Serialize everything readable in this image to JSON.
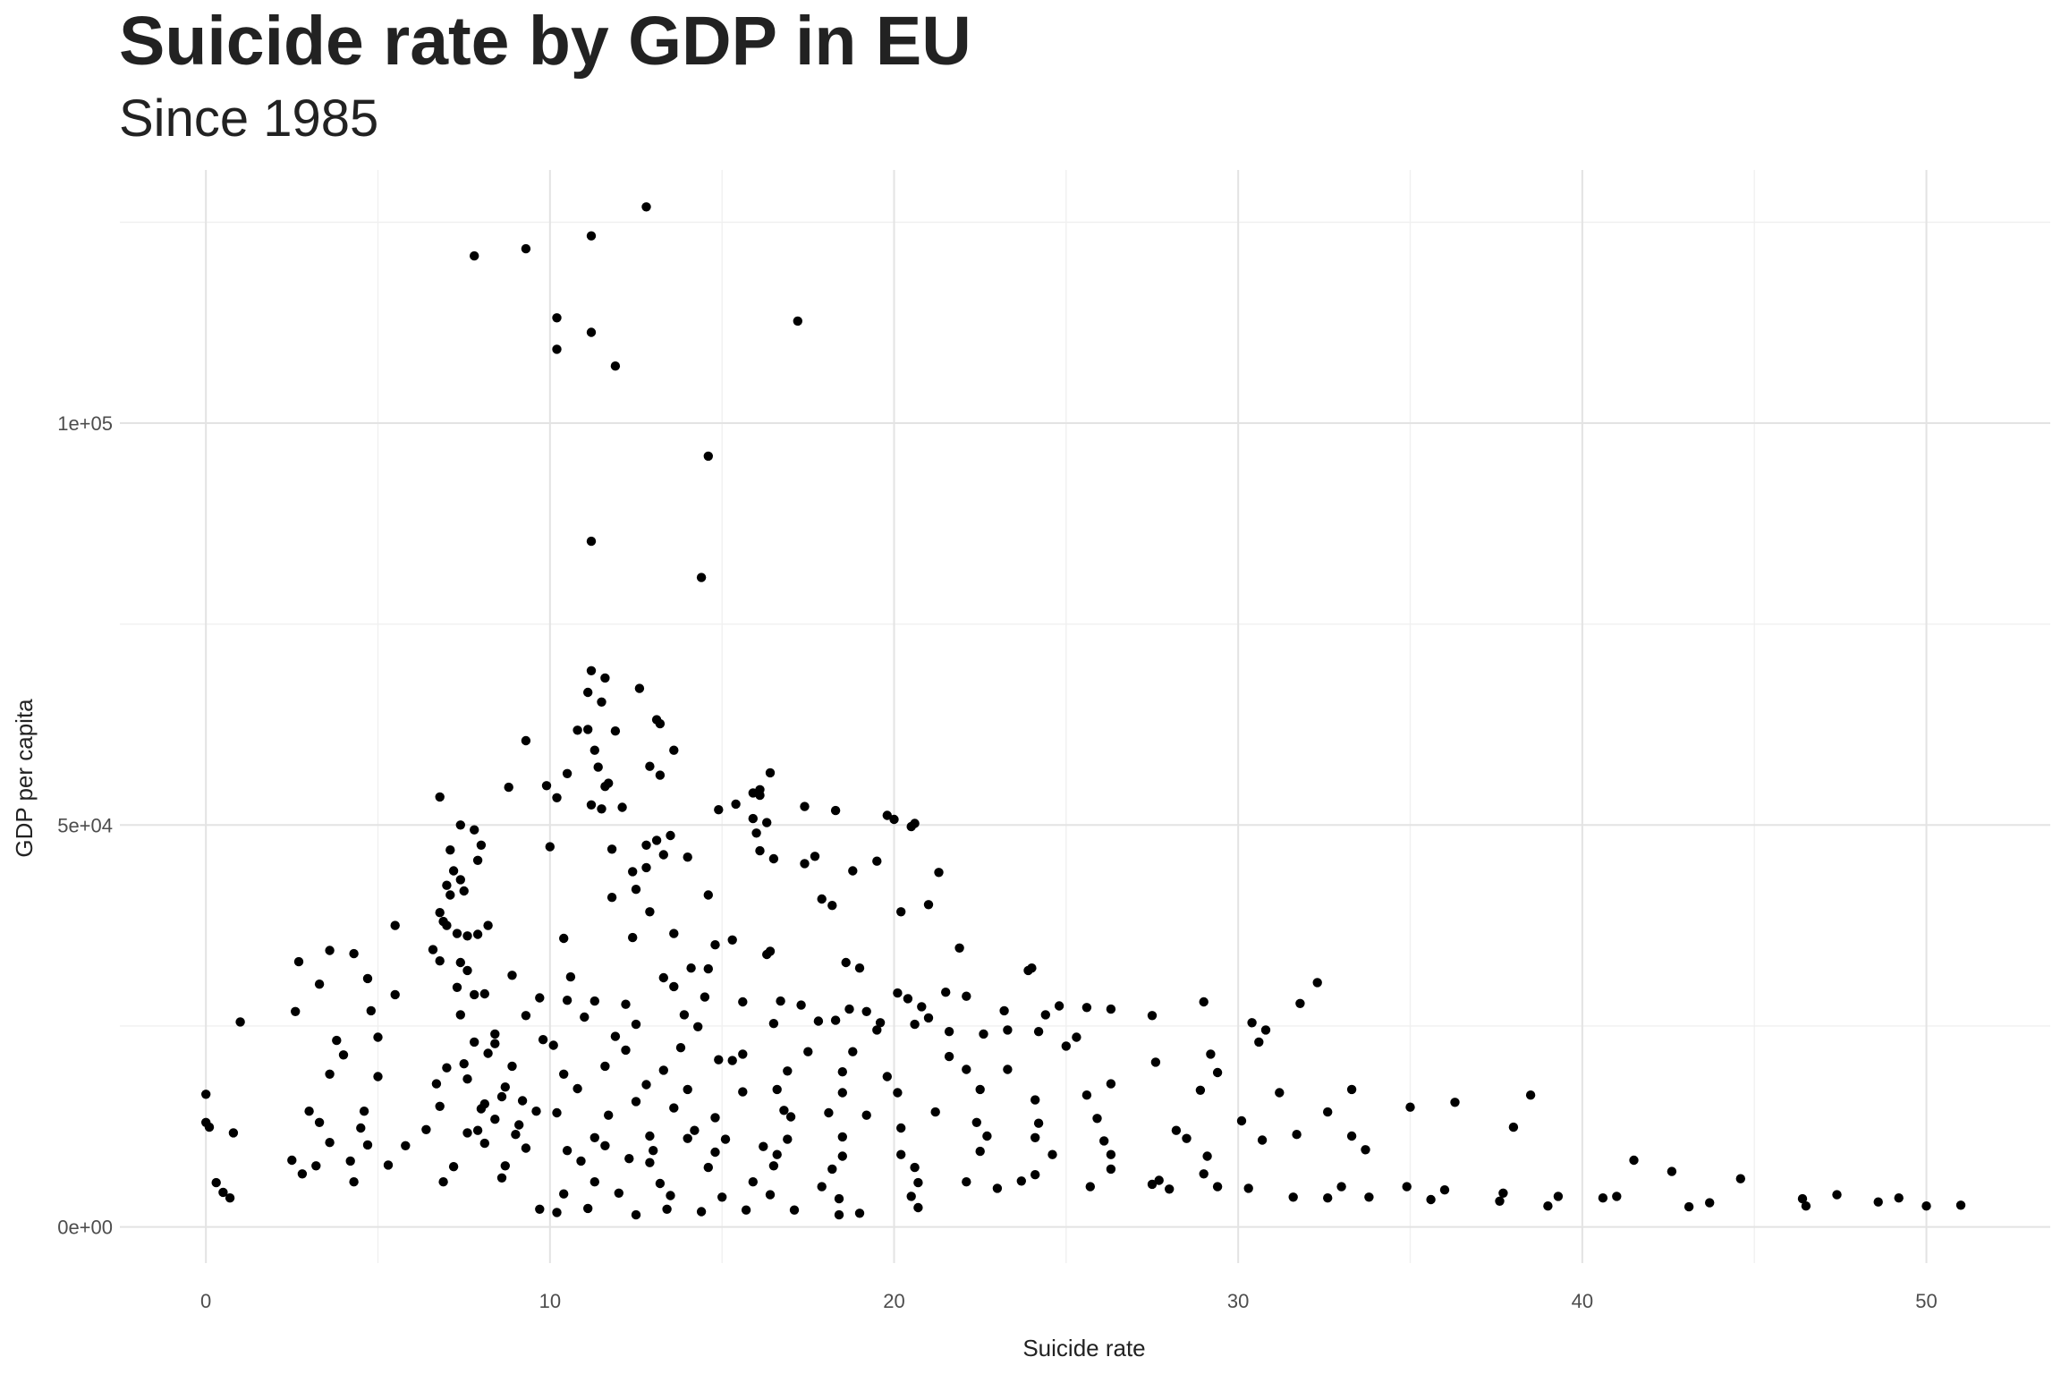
{
  "chart_data": {
    "type": "scatter",
    "title": "Suicide rate by GDP in EU",
    "subtitle": "Since 1985",
    "xlabel": "Suicide rate",
    "ylabel": "GDP per capita",
    "xlim": [
      -2.5,
      53.6
    ],
    "ylim": [
      -4500,
      131500
    ],
    "x_ticks": [
      0,
      10,
      20,
      30,
      40,
      50
    ],
    "x_tick_labels": [
      "0",
      "10",
      "20",
      "30",
      "40",
      "50"
    ],
    "y_ticks": [
      0,
      50000,
      100000
    ],
    "y_tick_labels": [
      "0e+00",
      "5e+04",
      "1e+05"
    ],
    "grid": true,
    "point_color": "#000000",
    "points": [
      [
        12.8,
        126900
      ],
      [
        11.2,
        123300
      ],
      [
        9.3,
        121700
      ],
      [
        7.8,
        120800
      ],
      [
        17.2,
        112700
      ],
      [
        10.2,
        113100
      ],
      [
        11.2,
        111300
      ],
      [
        10.2,
        109200
      ],
      [
        11.9,
        107100
      ],
      [
        14.6,
        95900
      ],
      [
        11.2,
        85300
      ],
      [
        14.4,
        80800
      ],
      [
        11.2,
        69200
      ],
      [
        11.6,
        68300
      ],
      [
        12.6,
        67000
      ],
      [
        11.1,
        66500
      ],
      [
        11.5,
        65300
      ],
      [
        13.1,
        63100
      ],
      [
        13.2,
        62600
      ],
      [
        11.1,
        61900
      ],
      [
        10.8,
        61800
      ],
      [
        11.9,
        61700
      ],
      [
        9.3,
        60500
      ],
      [
        11.3,
        59300
      ],
      [
        13.6,
        59300
      ],
      [
        12.9,
        57300
      ],
      [
        11.4,
        57200
      ],
      [
        16.4,
        56500
      ],
      [
        10.5,
        56400
      ],
      [
        13.2,
        56200
      ],
      [
        11.7,
        55200
      ],
      [
        11.6,
        54800
      ],
      [
        8.8,
        54700
      ],
      [
        9.9,
        54900
      ],
      [
        16.1,
        54400
      ],
      [
        15.9,
        54000
      ],
      [
        16.1,
        53700
      ],
      [
        6.8,
        53500
      ],
      [
        10.2,
        53400
      ],
      [
        14.9,
        51900
      ],
      [
        11.2,
        52500
      ],
      [
        12.1,
        52200
      ],
      [
        11.5,
        52000
      ],
      [
        17.4,
        52300
      ],
      [
        15.4,
        52600
      ],
      [
        18.3,
        51800
      ],
      [
        19.8,
        51200
      ],
      [
        20.0,
        50700
      ],
      [
        20.6,
        50200
      ],
      [
        20.5,
        49800
      ],
      [
        15.9,
        50800
      ],
      [
        16.3,
        50300
      ],
      [
        16.0,
        49000
      ],
      [
        13.5,
        48700
      ],
      [
        7.4,
        50000
      ],
      [
        7.8,
        49400
      ],
      [
        13.1,
        48100
      ],
      [
        12.8,
        47500
      ],
      [
        8.0,
        47500
      ],
      [
        7.1,
        46900
      ],
      [
        7.9,
        45600
      ],
      [
        10.0,
        47300
      ],
      [
        11.8,
        47000
      ],
      [
        13.3,
        46300
      ],
      [
        16.1,
        46800
      ],
      [
        16.5,
        45800
      ],
      [
        17.4,
        45200
      ],
      [
        17.7,
        46100
      ],
      [
        18.8,
        44300
      ],
      [
        19.5,
        45500
      ],
      [
        12.4,
        44200
      ],
      [
        12.8,
        44700
      ],
      [
        14.0,
        46000
      ],
      [
        21.3,
        44100
      ],
      [
        7.2,
        44300
      ],
      [
        7.4,
        43200
      ],
      [
        7.0,
        42500
      ],
      [
        7.1,
        41300
      ],
      [
        7.5,
        41800
      ],
      [
        6.8,
        39100
      ],
      [
        11.8,
        41000
      ],
      [
        12.5,
        42000
      ],
      [
        14.6,
        41300
      ],
      [
        17.9,
        40800
      ],
      [
        18.2,
        40000
      ],
      [
        21.0,
        40100
      ],
      [
        20.2,
        39200
      ],
      [
        6.9,
        38000
      ],
      [
        7.0,
        37500
      ],
      [
        7.3,
        36500
      ],
      [
        7.6,
        36200
      ],
      [
        7.9,
        36400
      ],
      [
        8.2,
        37500
      ],
      [
        5.5,
        37500
      ],
      [
        12.9,
        39200
      ],
      [
        13.6,
        36500
      ],
      [
        12.4,
        36000
      ],
      [
        10.4,
        35900
      ],
      [
        14.8,
        35100
      ],
      [
        15.3,
        35700
      ],
      [
        16.4,
        34300
      ],
      [
        6.6,
        34500
      ],
      [
        3.6,
        34400
      ],
      [
        4.3,
        34000
      ],
      [
        2.7,
        33000
      ],
      [
        6.8,
        33100
      ],
      [
        7.4,
        32900
      ],
      [
        7.6,
        31900
      ],
      [
        8.9,
        31300
      ],
      [
        10.6,
        31100
      ],
      [
        13.3,
        31000
      ],
      [
        14.1,
        32200
      ],
      [
        14.6,
        32100
      ],
      [
        16.3,
        33900
      ],
      [
        18.6,
        32900
      ],
      [
        19.0,
        32200
      ],
      [
        21.9,
        34700
      ],
      [
        23.9,
        31900
      ],
      [
        24.0,
        32200
      ],
      [
        32.3,
        30400
      ],
      [
        4.7,
        30900
      ],
      [
        3.3,
        30200
      ],
      [
        5.5,
        28900
      ],
      [
        7.3,
        29800
      ],
      [
        7.8,
        28900
      ],
      [
        8.1,
        29000
      ],
      [
        9.7,
        28500
      ],
      [
        10.5,
        28200
      ],
      [
        11.3,
        28100
      ],
      [
        12.2,
        27700
      ],
      [
        13.6,
        29900
      ],
      [
        14.5,
        28600
      ],
      [
        16.7,
        28100
      ],
      [
        17.3,
        27600
      ],
      [
        18.7,
        27100
      ],
      [
        20.4,
        28400
      ],
      [
        20.8,
        27400
      ],
      [
        21.5,
        29200
      ],
      [
        22.1,
        28700
      ],
      [
        23.2,
        26900
      ],
      [
        24.4,
        26400
      ],
      [
        25.6,
        27300
      ],
      [
        24.8,
        27500
      ],
      [
        26.3,
        27100
      ],
      [
        27.5,
        26300
      ],
      [
        29.0,
        28000
      ],
      [
        31.8,
        27800
      ],
      [
        2.6,
        26800
      ],
      [
        4.8,
        26900
      ],
      [
        7.4,
        26400
      ],
      [
        9.3,
        26300
      ],
      [
        11.0,
        26100
      ],
      [
        12.5,
        25200
      ],
      [
        14.3,
        24900
      ],
      [
        16.5,
        25300
      ],
      [
        18.3,
        25700
      ],
      [
        19.6,
        25400
      ],
      [
        20.6,
        25200
      ],
      [
        21.6,
        24300
      ],
      [
        22.6,
        24000
      ],
      [
        23.3,
        24500
      ],
      [
        24.2,
        24300
      ],
      [
        25.3,
        23600
      ],
      [
        30.4,
        25400
      ],
      [
        30.8,
        24500
      ],
      [
        1.0,
        25500
      ],
      [
        3.8,
        23200
      ],
      [
        5.0,
        23600
      ],
      [
        7.8,
        23000
      ],
      [
        8.4,
        22800
      ],
      [
        10.1,
        22600
      ],
      [
        12.2,
        22000
      ],
      [
        13.8,
        22300
      ],
      [
        15.6,
        21500
      ],
      [
        17.5,
        21800
      ],
      [
        18.8,
        21800
      ],
      [
        21.6,
        21200
      ],
      [
        25.0,
        22500
      ],
      [
        29.2,
        21500
      ],
      [
        30.6,
        23000
      ],
      [
        4.0,
        21400
      ],
      [
        7.5,
        20300
      ],
      [
        7.0,
        19800
      ],
      [
        8.9,
        20000
      ],
      [
        11.6,
        20000
      ],
      [
        13.3,
        19500
      ],
      [
        14.9,
        20800
      ],
      [
        15.3,
        20700
      ],
      [
        16.9,
        19400
      ],
      [
        18.5,
        19300
      ],
      [
        19.8,
        18700
      ],
      [
        22.1,
        19600
      ],
      [
        23.3,
        19600
      ],
      [
        27.6,
        20500
      ],
      [
        29.4,
        19200
      ],
      [
        3.6,
        19000
      ],
      [
        5.0,
        18700
      ],
      [
        6.7,
        17800
      ],
      [
        7.6,
        18400
      ],
      [
        8.7,
        17400
      ],
      [
        10.8,
        17200
      ],
      [
        12.8,
        17700
      ],
      [
        14.0,
        17100
      ],
      [
        15.6,
        16800
      ],
      [
        16.6,
        17100
      ],
      [
        18.5,
        16700
      ],
      [
        20.1,
        16700
      ],
      [
        22.5,
        17100
      ],
      [
        24.1,
        15800
      ],
      [
        25.6,
        16400
      ],
      [
        26.3,
        17800
      ],
      [
        28.9,
        17000
      ],
      [
        31.2,
        16700
      ],
      [
        33.3,
        17100
      ],
      [
        36.3,
        15500
      ],
      [
        38.5,
        16400
      ],
      [
        0.0,
        16500
      ],
      [
        3.0,
        14400
      ],
      [
        4.6,
        14400
      ],
      [
        6.8,
        15000
      ],
      [
        8.0,
        14700
      ],
      [
        9.6,
        14400
      ],
      [
        10.2,
        14200
      ],
      [
        11.7,
        13900
      ],
      [
        13.6,
        14800
      ],
      [
        14.8,
        13600
      ],
      [
        16.8,
        14500
      ],
      [
        18.1,
        14200
      ],
      [
        19.2,
        13900
      ],
      [
        21.2,
        14300
      ],
      [
        22.4,
        13000
      ],
      [
        24.2,
        12900
      ],
      [
        25.9,
        13500
      ],
      [
        28.2,
        12000
      ],
      [
        30.1,
        13200
      ],
      [
        32.6,
        14300
      ],
      [
        35.0,
        14900
      ],
      [
        38.0,
        12400
      ],
      [
        0.0,
        13000
      ],
      [
        0.1,
        12400
      ],
      [
        3.3,
        13000
      ],
      [
        4.5,
        12300
      ],
      [
        6.4,
        12100
      ],
      [
        7.6,
        11700
      ],
      [
        9.0,
        11500
      ],
      [
        11.3,
        11100
      ],
      [
        12.9,
        11300
      ],
      [
        15.1,
        10900
      ],
      [
        16.9,
        10900
      ],
      [
        18.5,
        11200
      ],
      [
        20.2,
        12300
      ],
      [
        22.7,
        11300
      ],
      [
        24.1,
        11100
      ],
      [
        26.1,
        10700
      ],
      [
        28.5,
        11000
      ],
      [
        30.7,
        10800
      ],
      [
        31.7,
        11500
      ],
      [
        33.3,
        11300
      ],
      [
        0.8,
        11700
      ],
      [
        3.6,
        10500
      ],
      [
        4.7,
        10200
      ],
      [
        5.8,
        10100
      ],
      [
        8.1,
        10400
      ],
      [
        9.3,
        9800
      ],
      [
        10.5,
        9500
      ],
      [
        11.6,
        10100
      ],
      [
        13.0,
        9500
      ],
      [
        14.8,
        9300
      ],
      [
        16.6,
        9000
      ],
      [
        18.5,
        8800
      ],
      [
        20.2,
        9000
      ],
      [
        22.5,
        9400
      ],
      [
        24.6,
        9000
      ],
      [
        26.3,
        9000
      ],
      [
        29.1,
        8800
      ],
      [
        33.7,
        9600
      ],
      [
        2.5,
        8300
      ],
      [
        3.2,
        7600
      ],
      [
        4.2,
        8200
      ],
      [
        5.3,
        7700
      ],
      [
        7.2,
        7500
      ],
      [
        8.7,
        7600
      ],
      [
        10.9,
        8200
      ],
      [
        12.9,
        8000
      ],
      [
        14.6,
        7400
      ],
      [
        16.5,
        7600
      ],
      [
        18.2,
        7200
      ],
      [
        20.6,
        7400
      ],
      [
        24.1,
        6500
      ],
      [
        26.3,
        7200
      ],
      [
        27.7,
        5800
      ],
      [
        29.0,
        6600
      ],
      [
        41.5,
        8300
      ],
      [
        42.6,
        6900
      ],
      [
        2.8,
        6600
      ],
      [
        4.3,
        5600
      ],
      [
        6.9,
        5600
      ],
      [
        8.6,
        6100
      ],
      [
        11.3,
        5600
      ],
      [
        13.2,
        5400
      ],
      [
        15.9,
        5600
      ],
      [
        17.9,
        5000
      ],
      [
        20.7,
        5500
      ],
      [
        22.1,
        5600
      ],
      [
        23.7,
        5700
      ],
      [
        27.5,
        5300
      ],
      [
        29.4,
        5000
      ],
      [
        30.3,
        4800
      ],
      [
        33.0,
        5000
      ],
      [
        34.9,
        5000
      ],
      [
        36.0,
        4600
      ],
      [
        37.7,
        4200
      ],
      [
        44.6,
        6000
      ],
      [
        0.3,
        5500
      ],
      [
        0.5,
        4300
      ],
      [
        0.7,
        3600
      ],
      [
        10.4,
        4100
      ],
      [
        12.0,
        4200
      ],
      [
        13.5,
        3900
      ],
      [
        15.0,
        3700
      ],
      [
        16.4,
        4000
      ],
      [
        18.4,
        3500
      ],
      [
        20.5,
        3800
      ],
      [
        23.0,
        4800
      ],
      [
        25.7,
        5000
      ],
      [
        28.0,
        4700
      ],
      [
        31.6,
        3700
      ],
      [
        32.6,
        3600
      ],
      [
        33.8,
        3700
      ],
      [
        35.6,
        3400
      ],
      [
        37.6,
        3200
      ],
      [
        39.3,
        3800
      ],
      [
        40.6,
        3600
      ],
      [
        41.0,
        3800
      ],
      [
        46.4,
        3500
      ],
      [
        47.4,
        4000
      ],
      [
        48.6,
        3100
      ],
      [
        49.2,
        3600
      ],
      [
        9.7,
        2200
      ],
      [
        10.2,
        1800
      ],
      [
        11.1,
        2300
      ],
      [
        12.5,
        1500
      ],
      [
        13.4,
        2200
      ],
      [
        14.4,
        1900
      ],
      [
        15.7,
        2100
      ],
      [
        17.1,
        2100
      ],
      [
        18.4,
        1500
      ],
      [
        19.0,
        1700
      ],
      [
        20.7,
        2400
      ],
      [
        39.0,
        2600
      ],
      [
        43.1,
        2500
      ],
      [
        43.7,
        3000
      ],
      [
        46.5,
        2600
      ],
      [
        50.0,
        2600
      ],
      [
        51.0,
        2700
      ],
      [
        12.3,
        8500
      ],
      [
        14.0,
        11000
      ],
      [
        17.0,
        13700
      ],
      [
        19.5,
        24500
      ],
      [
        21.0,
        26000
      ],
      [
        8.4,
        24000
      ],
      [
        9.8,
        23300
      ],
      [
        11.9,
        23700
      ],
      [
        13.9,
        26400
      ],
      [
        15.6,
        28000
      ],
      [
        17.8,
        25600
      ],
      [
        19.2,
        26800
      ],
      [
        20.1,
        29100
      ],
      [
        8.2,
        21600
      ],
      [
        10.4,
        19000
      ],
      [
        12.5,
        15600
      ],
      [
        14.2,
        12000
      ],
      [
        16.2,
        10000
      ],
      [
        8.1,
        15300
      ],
      [
        8.6,
        16200
      ],
      [
        9.1,
        12700
      ],
      [
        7.9,
        12000
      ],
      [
        8.4,
        13400
      ],
      [
        9.2,
        15700
      ]
    ]
  }
}
